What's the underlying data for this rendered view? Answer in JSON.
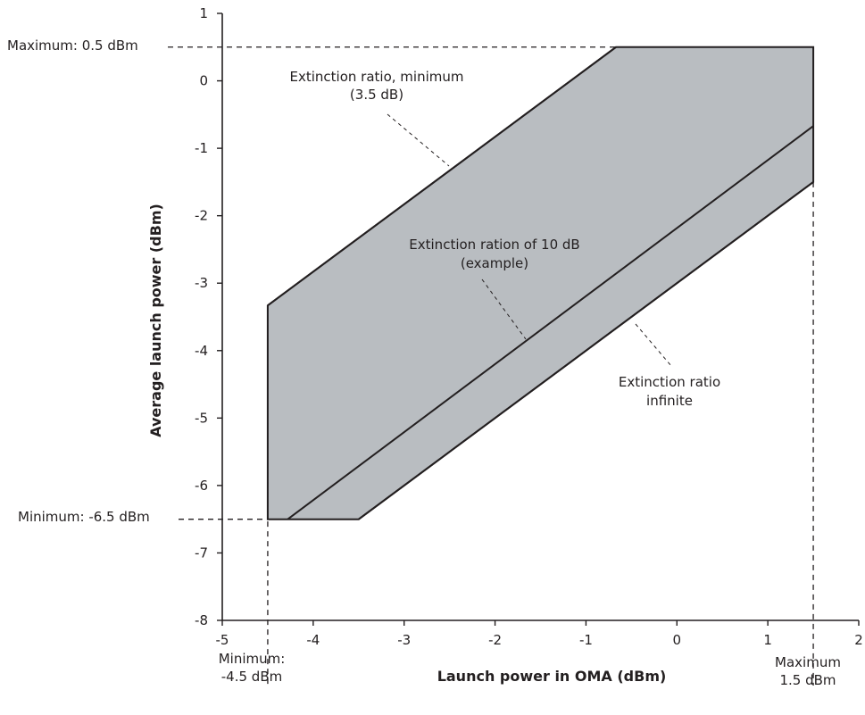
{
  "chart_data": {
    "type": "area",
    "xlabel": "Launch power in OMA (dBm)",
    "ylabel": "Average launch power (dBm)",
    "xlim": [
      -5,
      2
    ],
    "ylim": [
      -8,
      1
    ],
    "xticks": [
      -5,
      -4,
      -3,
      -2,
      -1,
      0,
      1,
      2
    ],
    "yticks": [
      1,
      0,
      -1,
      -2,
      -3,
      -4,
      -5,
      -6,
      -7,
      -8
    ],
    "grid": false,
    "fill_color": "#b9bdc1",
    "line_color": "#231f20",
    "region": [
      [
        -4.5,
        -6.5
      ],
      [
        -3.5,
        -6.5
      ],
      [
        1.5,
        -1.5
      ],
      [
        1.5,
        0.5
      ],
      [
        -0.67,
        0.5
      ],
      [
        -4.5,
        -3.33
      ]
    ],
    "series": [
      {
        "name": "Extinction ratio, minimum (3.5 dB)",
        "x": [
          -4.5,
          -0.67
        ],
        "y": [
          -3.33,
          0.5
        ]
      },
      {
        "name": "Extinction ration of 10 dB (example)",
        "x": [
          -4.28,
          1.5
        ],
        "y": [
          -6.5,
          -0.67
        ]
      },
      {
        "name": "Extinction ratio infinite",
        "x": [
          -3.5,
          1.5
        ],
        "y": [
          -6.5,
          -1.5
        ]
      }
    ],
    "limits": {
      "y_max": 0.5,
      "y_min": -6.5,
      "x_min": -4.5,
      "x_max": 1.5
    },
    "annotations": {
      "y_max_label": "Maximum: 0.5 dBm",
      "y_min_label": "Minimum: -6.5 dBm",
      "x_min_label": [
        "Minimum:",
        "-4.5 dBm"
      ],
      "x_max_label": [
        "Maximum",
        "1.5 dBm"
      ],
      "er_min_label": [
        "Extinction ratio, minimum",
        "(3.5 dB)"
      ],
      "er_10_label": [
        "Extinction ration of 10 dB",
        "(example)"
      ],
      "er_inf_label": [
        "Extinction ratio",
        "infinite"
      ]
    }
  }
}
